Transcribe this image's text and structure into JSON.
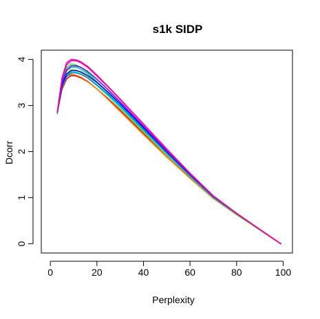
{
  "chart_data": {
    "type": "line",
    "title": "s1k SIDP",
    "xlabel": "Perplexity",
    "ylabel": "Dcorr",
    "xlim": [
      0,
      100
    ],
    "ylim": [
      0,
      4
    ],
    "x_ticks": [
      0,
      20,
      40,
      60,
      80,
      100
    ],
    "y_ticks": [
      0,
      1,
      2,
      3,
      4
    ],
    "grid": false,
    "legend": "none",
    "series": [
      {
        "color": "#ff0000",
        "x": [
          3,
          5,
          7,
          9,
          11,
          13,
          16,
          20,
          25,
          30,
          40,
          50,
          60,
          70,
          80,
          90,
          99
        ],
        "y": [
          2.85,
          3.35,
          3.58,
          3.65,
          3.64,
          3.6,
          3.52,
          3.36,
          3.14,
          2.9,
          2.4,
          1.92,
          1.45,
          1.0,
          0.64,
          0.3,
          0.0
        ]
      },
      {
        "color": "#ff8000",
        "x": [
          3,
          5,
          7,
          9,
          11,
          13,
          16,
          20,
          25,
          30,
          40,
          50,
          60,
          70,
          80,
          90,
          99
        ],
        "y": [
          2.85,
          3.38,
          3.62,
          3.68,
          3.66,
          3.62,
          3.53,
          3.36,
          3.12,
          2.87,
          2.37,
          1.88,
          1.42,
          0.98,
          0.63,
          0.3,
          0.0
        ]
      },
      {
        "color": "#ffd000",
        "x": [
          3,
          5,
          7,
          9,
          11,
          13,
          16,
          20,
          25,
          30,
          40,
          50,
          60,
          70,
          80,
          90,
          99
        ],
        "y": [
          2.85,
          3.45,
          3.7,
          3.78,
          3.77,
          3.72,
          3.62,
          3.44,
          3.2,
          2.94,
          2.43,
          1.93,
          1.46,
          1.0,
          0.64,
          0.3,
          0.0
        ]
      },
      {
        "color": "#00ff00",
        "x": [
          3,
          5,
          7,
          9,
          11,
          13,
          16,
          20,
          25,
          30,
          40,
          50,
          60,
          70,
          80,
          90,
          99
        ],
        "y": [
          2.85,
          3.55,
          3.82,
          3.9,
          3.88,
          3.83,
          3.72,
          3.52,
          3.26,
          2.99,
          2.46,
          1.95,
          1.47,
          1.01,
          0.65,
          0.31,
          0.0
        ]
      },
      {
        "color": "#00ff80",
        "x": [
          3,
          5,
          7,
          9,
          11,
          13,
          16,
          20,
          25,
          30,
          40,
          50,
          60,
          70,
          80,
          90,
          99
        ],
        "y": [
          2.83,
          3.42,
          3.66,
          3.74,
          3.73,
          3.69,
          3.6,
          3.43,
          3.2,
          2.95,
          2.44,
          1.94,
          1.46,
          1.0,
          0.64,
          0.3,
          0.0
        ]
      },
      {
        "color": "#00d0d0",
        "x": [
          3,
          5,
          7,
          9,
          11,
          13,
          16,
          20,
          25,
          30,
          40,
          50,
          60,
          70,
          80,
          90,
          99
        ],
        "y": [
          2.82,
          3.48,
          3.75,
          3.83,
          3.83,
          3.79,
          3.69,
          3.51,
          3.27,
          3.01,
          2.49,
          1.97,
          1.48,
          1.01,
          0.65,
          0.31,
          0.0
        ]
      },
      {
        "color": "#0080ff",
        "x": [
          3,
          5,
          7,
          9,
          11,
          13,
          16,
          20,
          25,
          30,
          40,
          50,
          60,
          70,
          80,
          90,
          99
        ],
        "y": [
          2.85,
          3.4,
          3.63,
          3.71,
          3.71,
          3.68,
          3.6,
          3.45,
          3.23,
          2.99,
          2.48,
          1.97,
          1.48,
          1.01,
          0.65,
          0.31,
          0.0
        ]
      },
      {
        "color": "#0000ff",
        "x": [
          3,
          5,
          7,
          9,
          11,
          13,
          16,
          20,
          25,
          30,
          40,
          50,
          60,
          70,
          80,
          90,
          99
        ],
        "y": [
          2.85,
          3.44,
          3.68,
          3.76,
          3.76,
          3.73,
          3.65,
          3.5,
          3.28,
          3.04,
          2.52,
          2.0,
          1.5,
          1.03,
          0.66,
          0.31,
          0.0
        ]
      },
      {
        "color": "#8000ff",
        "x": [
          3,
          5,
          7,
          9,
          11,
          13,
          16,
          20,
          25,
          30,
          40,
          50,
          60,
          70,
          80,
          90,
          99
        ],
        "y": [
          2.85,
          3.5,
          3.77,
          3.86,
          3.86,
          3.83,
          3.74,
          3.57,
          3.33,
          3.08,
          2.55,
          2.02,
          1.51,
          1.03,
          0.66,
          0.31,
          0.0
        ]
      },
      {
        "color": "#ff00ff",
        "x": [
          3,
          5,
          7,
          9,
          11,
          13,
          16,
          20,
          25,
          30,
          40,
          50,
          60,
          70,
          80,
          90,
          99
        ],
        "y": [
          2.85,
          3.58,
          3.88,
          3.97,
          3.97,
          3.93,
          3.83,
          3.64,
          3.39,
          3.13,
          2.59,
          2.05,
          1.53,
          1.04,
          0.66,
          0.31,
          0.0
        ]
      },
      {
        "color": "#ff0080",
        "x": [
          3,
          5,
          7,
          9,
          11,
          13,
          16,
          20,
          25,
          30,
          40,
          50,
          60,
          70,
          80,
          90,
          99
        ],
        "y": [
          2.85,
          3.6,
          3.93,
          4.0,
          3.99,
          3.95,
          3.85,
          3.66,
          3.4,
          3.14,
          2.6,
          2.06,
          1.53,
          1.04,
          0.66,
          0.31,
          0.0
        ]
      }
    ]
  }
}
